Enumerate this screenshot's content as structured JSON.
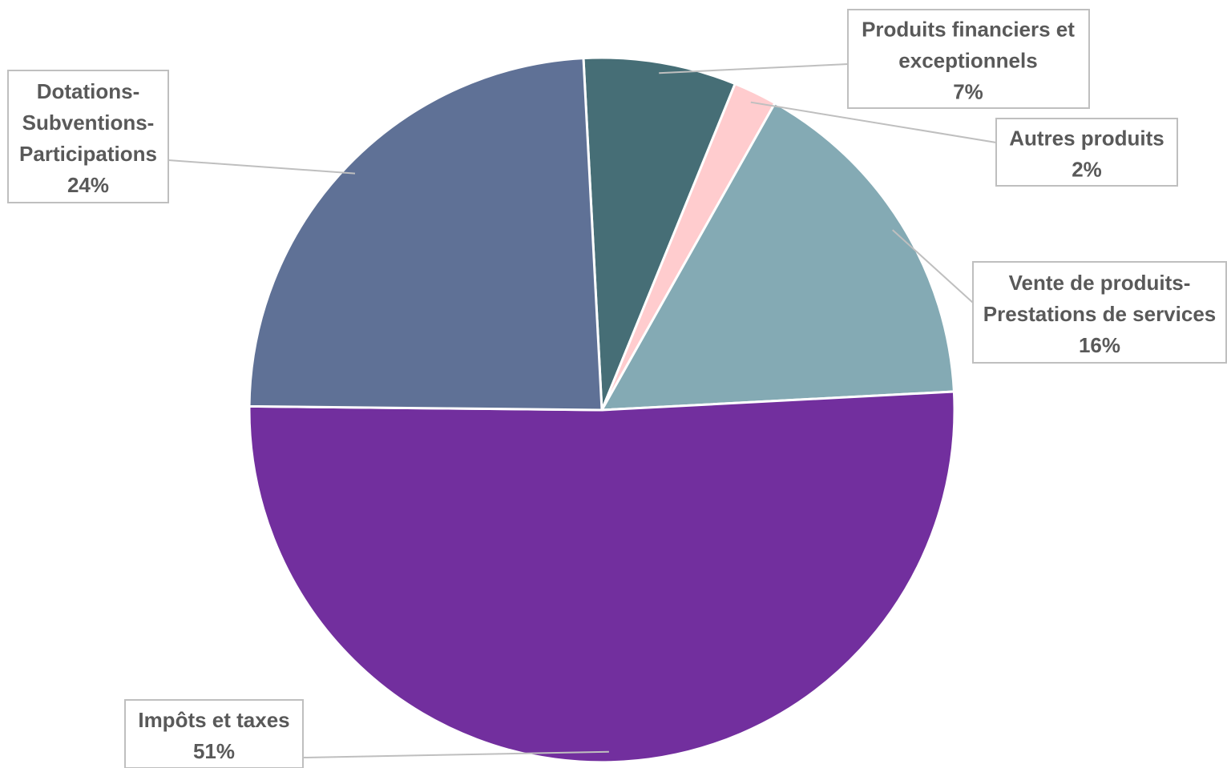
{
  "chart_data": {
    "type": "pie",
    "slices": [
      {
        "label": "Produits financiers et exceptionnels",
        "label_lines": [
          "Produits financiers et",
          "exceptionnels"
        ],
        "value": 7,
        "pct_label": "7%",
        "color": "#466e76"
      },
      {
        "label": "Autres produits",
        "label_lines": [
          "Autres produits"
        ],
        "value": 2,
        "pct_label": "2%",
        "color": "#ffccce"
      },
      {
        "label": "Vente de produits-Prestations de services",
        "label_lines": [
          "Vente de produits-",
          "Prestations de services"
        ],
        "value": 16,
        "pct_label": "16%",
        "color": "#84aab4"
      },
      {
        "label": "Impôts et taxes",
        "label_lines": [
          "Impôts et taxes"
        ],
        "value": 51,
        "pct_label": "51%",
        "color": "#722f9e"
      },
      {
        "label": "Dotations-Subventions-Participations",
        "label_lines": [
          "Dotations-",
          "Subventions-",
          "Participations"
        ],
        "value": 24,
        "pct_label": "24%",
        "color": "#5f7196"
      }
    ],
    "legend": "none",
    "data_labels": "callouts"
  }
}
